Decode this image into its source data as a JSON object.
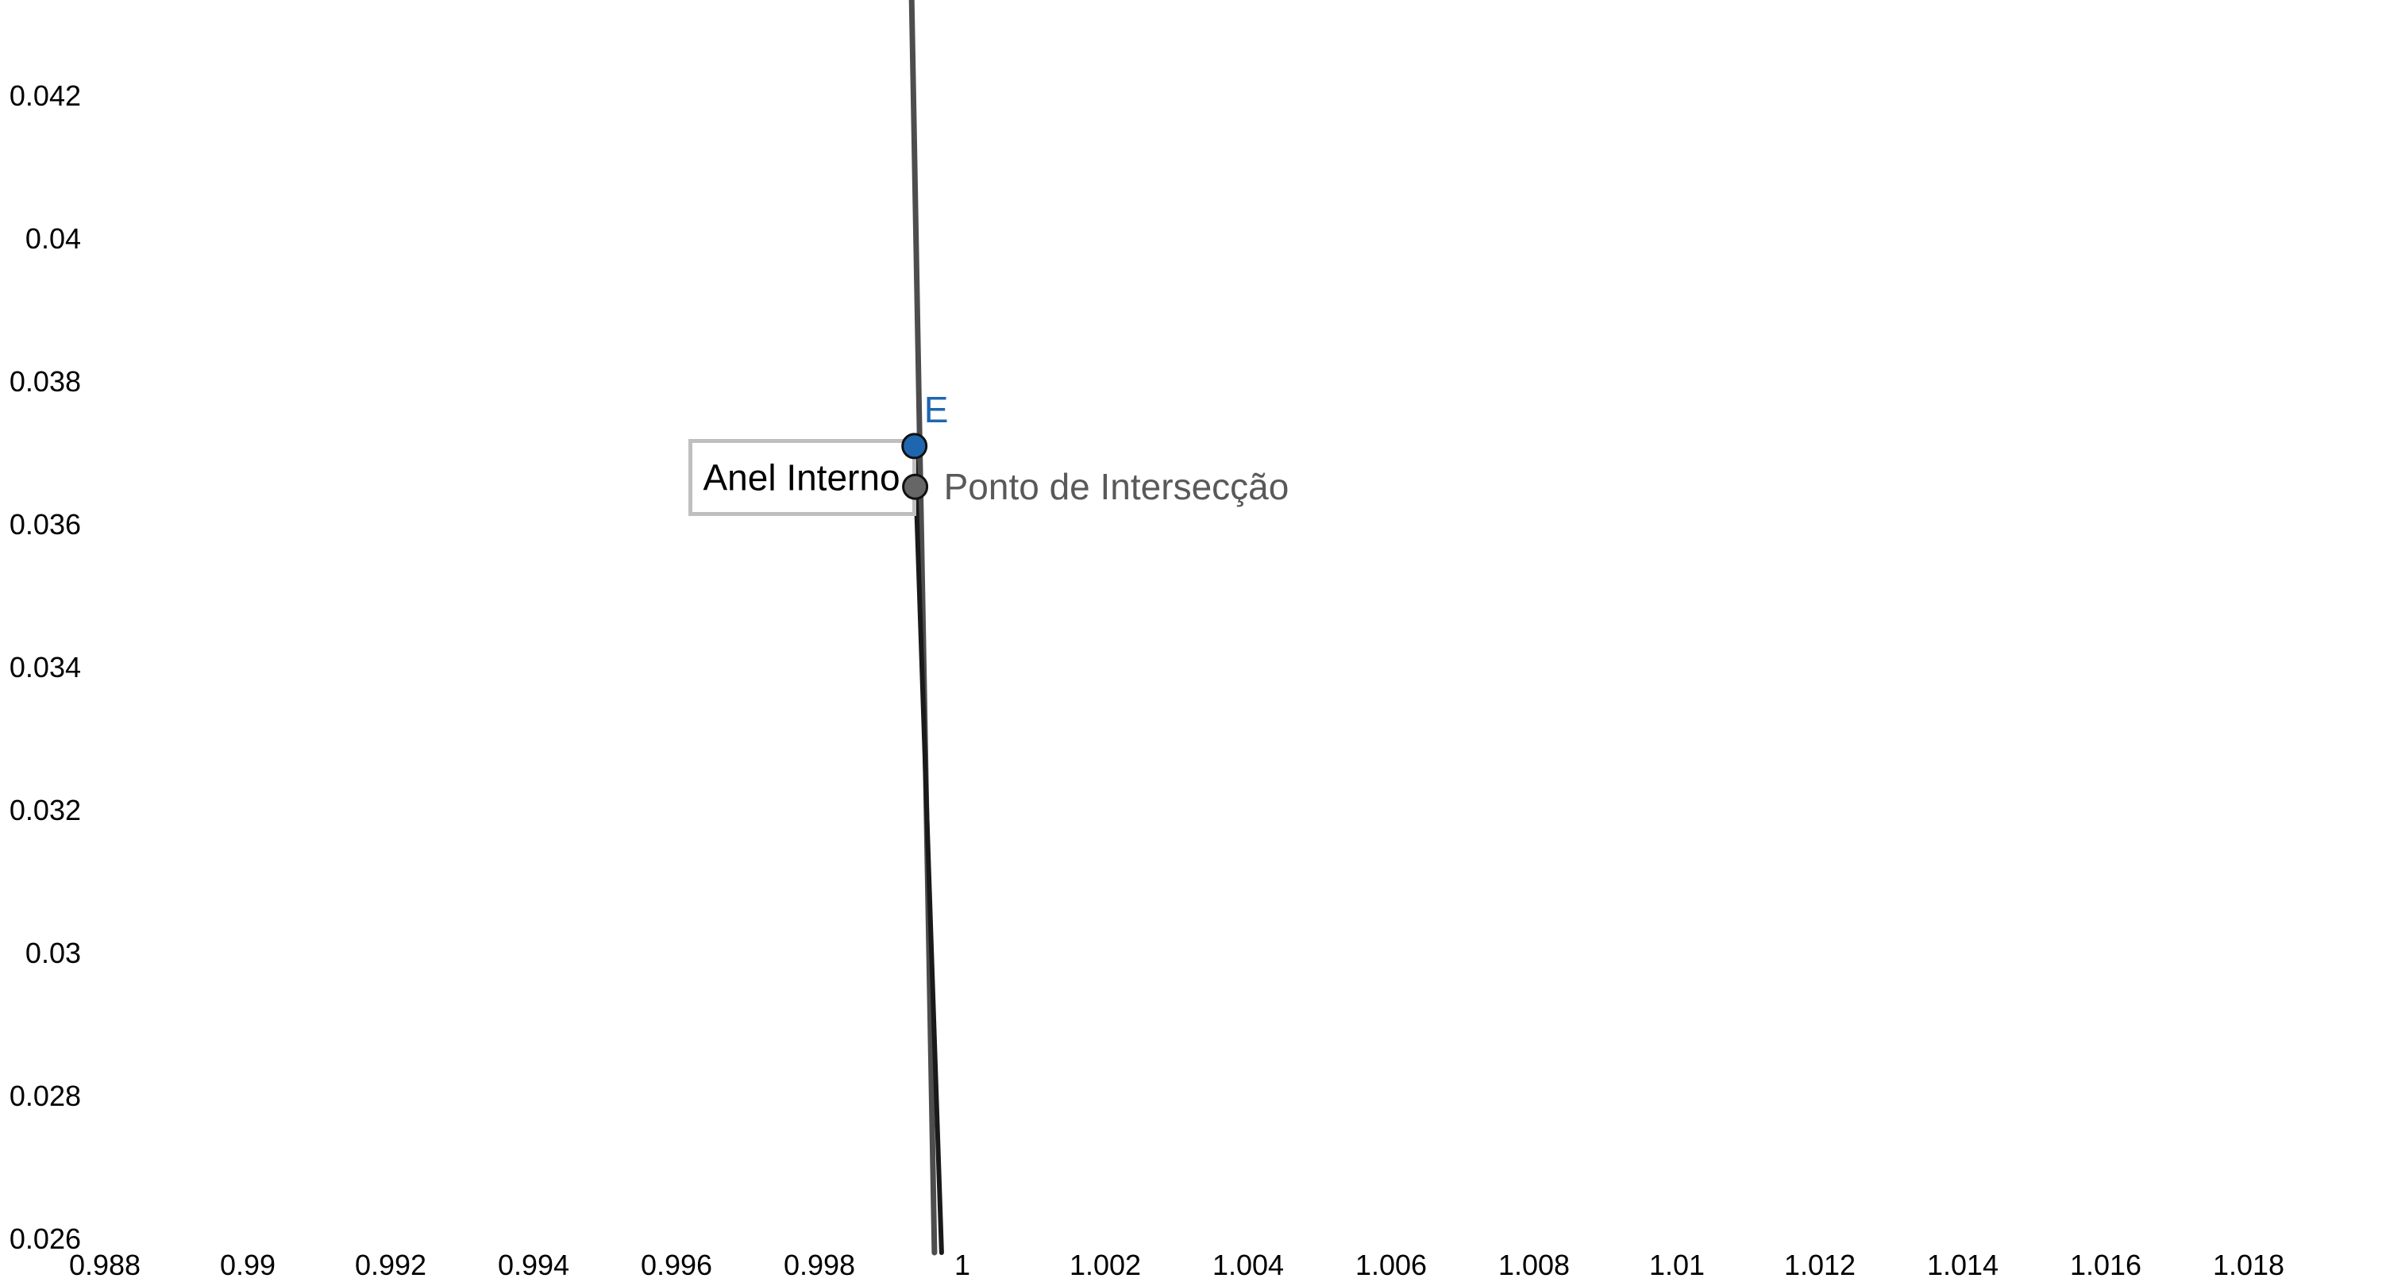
{
  "chart_data": {
    "type": "line",
    "xlim": [
      0.988,
      1.019
    ],
    "ylim": [
      0.0258,
      0.0434
    ],
    "x_ticks": [
      {
        "value": 0.988,
        "label": "0.988"
      },
      {
        "value": 0.99,
        "label": "0.99"
      },
      {
        "value": 0.992,
        "label": "0.992"
      },
      {
        "value": 0.994,
        "label": "0.994"
      },
      {
        "value": 0.996,
        "label": "0.996"
      },
      {
        "value": 0.998,
        "label": "0.998"
      },
      {
        "value": 1.0,
        "label": "1"
      },
      {
        "value": 1.002,
        "label": "1.002"
      },
      {
        "value": 1.004,
        "label": "1.004"
      },
      {
        "value": 1.006,
        "label": "1.006"
      },
      {
        "value": 1.008,
        "label": "1.008"
      },
      {
        "value": 1.01,
        "label": "1.01"
      },
      {
        "value": 1.012,
        "label": "1.012"
      },
      {
        "value": 1.014,
        "label": "1.014"
      },
      {
        "value": 1.016,
        "label": "1.016"
      },
      {
        "value": 1.018,
        "label": "1.018"
      }
    ],
    "y_ticks": [
      {
        "value": 0.026,
        "label": "0.026"
      },
      {
        "value": 0.028,
        "label": "0.028"
      },
      {
        "value": 0.03,
        "label": "0.03"
      },
      {
        "value": 0.032,
        "label": "0.032"
      },
      {
        "value": 0.034,
        "label": "0.034"
      },
      {
        "value": 0.036,
        "label": "0.036"
      },
      {
        "value": 0.038,
        "label": "0.038"
      },
      {
        "value": 0.04,
        "label": "0.04"
      },
      {
        "value": 0.042,
        "label": "0.042"
      }
    ],
    "grid": false,
    "series": [
      {
        "color": "#4d4d4d",
        "points": [
          [
            0.99929,
            0.0434
          ],
          [
            0.99961,
            0.0258
          ]
        ]
      },
      {
        "color": "#1a1a1a",
        "points": [
          [
            0.99933,
            0.0371
          ],
          [
            0.99971,
            0.0258
          ]
        ]
      }
    ],
    "points": [
      {
        "label": "E",
        "x": 0.99933,
        "y": 0.03709,
        "color": "#1f66b0"
      },
      {
        "label": "Ponto de Intersecção",
        "x": 0.99934,
        "y": 0.03652,
        "color": "#666666"
      }
    ],
    "caption": {
      "text": "Anel Interno",
      "x": 0.99775,
      "y": 0.03665
    }
  },
  "colors": {
    "background": "#ffffff",
    "point_E": "#1f66b0",
    "point_intersection": "#666666",
    "caption_border": "#bfbfbf"
  }
}
